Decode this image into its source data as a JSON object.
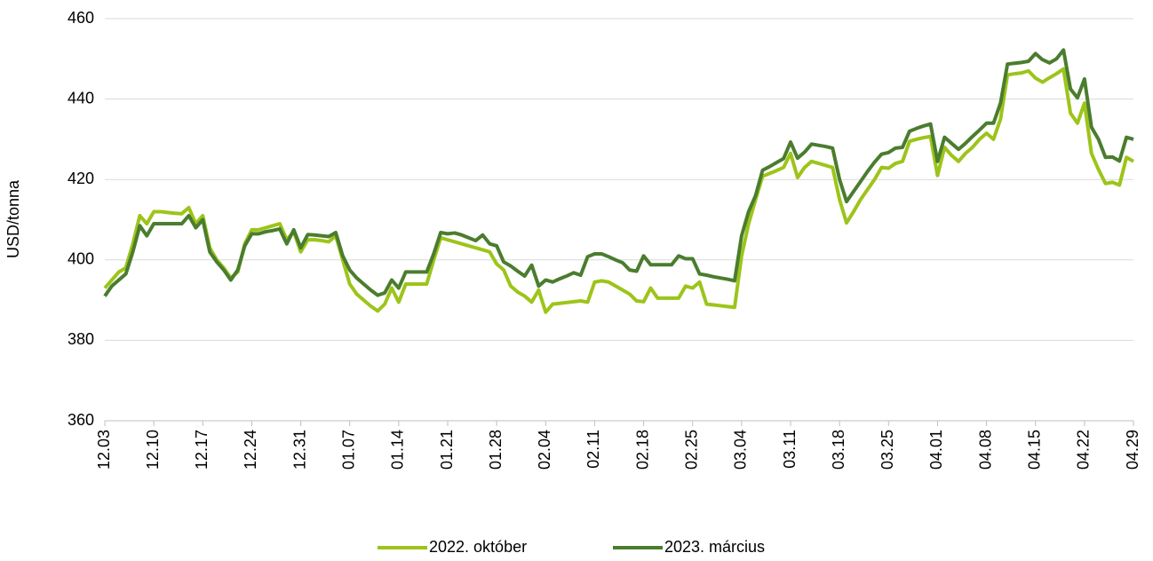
{
  "chart_data": {
    "type": "line",
    "y_label": "USD/tonna",
    "categories": [
      "12.03",
      null,
      null,
      null,
      null,
      null,
      null,
      "12.10",
      null,
      null,
      null,
      null,
      null,
      null,
      "12.17",
      null,
      null,
      null,
      null,
      null,
      null,
      "12.24",
      null,
      null,
      null,
      null,
      null,
      null,
      "12.31",
      null,
      null,
      null,
      null,
      null,
      null,
      "01.07",
      null,
      null,
      null,
      null,
      null,
      null,
      "01.14",
      null,
      null,
      null,
      null,
      null,
      null,
      "01.21",
      null,
      null,
      null,
      null,
      null,
      null,
      "01.28",
      null,
      null,
      null,
      null,
      null,
      null,
      "02.04",
      null,
      null,
      null,
      null,
      null,
      null,
      "02.11",
      null,
      null,
      null,
      null,
      null,
      null,
      "02.18",
      null,
      null,
      null,
      null,
      null,
      null,
      "02.25",
      null,
      null,
      null,
      null,
      null,
      null,
      "03.04",
      null,
      null,
      null,
      null,
      null,
      null,
      "03.11",
      null,
      null,
      null,
      null,
      null,
      null,
      "03.18",
      null,
      null,
      null,
      null,
      null,
      null,
      "03.25",
      null,
      null,
      null,
      null,
      null,
      null,
      "04.01",
      null,
      null,
      null,
      null,
      null,
      null,
      "04.08",
      null,
      null,
      null,
      null,
      null,
      null,
      "04.15",
      null,
      null,
      null,
      null,
      null,
      null,
      "04.22",
      null,
      null,
      null,
      null,
      null,
      null,
      "04.29"
    ],
    "series": [
      {
        "name": "2022. október",
        "color": "#9dc41a",
        "values": [
          393,
          395,
          397,
          398,
          404,
          411,
          409,
          412,
          412,
          411.8,
          411.6,
          411.5,
          413,
          409,
          411,
          403,
          400,
          398,
          395.5,
          397,
          404,
          407.5,
          407.5,
          408,
          408.5,
          409,
          405,
          407,
          402,
          405,
          405,
          404.8,
          404.5,
          406,
          400,
          394,
          391.5,
          390,
          388.5,
          387.3,
          389,
          393,
          389.5,
          394,
          394,
          394,
          394,
          400,
          405.5,
          405,
          404.5,
          404,
          403.5,
          403,
          402.5,
          402,
          399,
          397.5,
          393.5,
          392,
          391,
          389.5,
          392.5,
          387,
          389,
          389.2,
          389.4,
          389.6,
          389.8,
          389.5,
          394.5,
          394.8,
          394.5,
          393.5,
          392.5,
          391.5,
          389.8,
          389.6,
          393,
          390.5,
          390.5,
          390.5,
          390.5,
          393.5,
          393,
          394.5,
          389,
          388.8,
          388.6,
          388.4,
          388.2,
          401,
          409,
          415,
          420.8,
          421.5,
          422.2,
          423,
          426.5,
          420.5,
          423,
          424.5,
          424,
          423.5,
          423,
          415,
          409.2,
          412,
          415,
          417.5,
          420,
          423,
          422.8,
          424,
          424.5,
          429.5,
          430,
          430.4,
          430.7,
          421,
          428,
          426,
          424.5,
          426.5,
          428,
          430,
          431.5,
          430,
          435,
          446,
          446.3,
          446.5,
          447,
          445.2,
          444.2,
          445.3,
          446.3,
          447.5,
          436.5,
          434,
          439,
          426.5,
          422.5,
          419,
          419.3,
          418.6,
          425.5,
          424.5
        ]
      },
      {
        "name": "2023. március",
        "color": "#4a7d2e",
        "values": [
          391,
          393.5,
          395,
          396.5,
          402,
          408.5,
          406,
          409,
          409,
          409,
          409,
          409,
          411,
          408,
          410,
          402,
          399.5,
          397.5,
          395,
          397.5,
          403.5,
          406.5,
          406.5,
          407,
          407.3,
          407.7,
          404,
          407.5,
          403,
          406.3,
          406.2,
          406,
          405.8,
          406.8,
          401,
          397.5,
          395.5,
          394,
          392.5,
          391.2,
          391.8,
          395,
          393,
          397,
          397,
          397,
          397,
          401.5,
          406.8,
          406.5,
          406.7,
          406.2,
          405.5,
          404.8,
          406.2,
          404,
          403.5,
          399.5,
          398.5,
          397.2,
          396,
          398.7,
          393.5,
          395,
          394.5,
          395.3,
          396,
          396.8,
          396.2,
          400.8,
          401.5,
          401.5,
          400.8,
          400,
          399.3,
          397.5,
          397.2,
          401,
          398.8,
          398.8,
          398.8,
          398.8,
          401,
          400.3,
          400.3,
          396.5,
          396.2,
          395.8,
          395.5,
          395.2,
          394.8,
          406,
          412,
          416,
          422.3,
          423.2,
          424.2,
          425.2,
          429.3,
          425.3,
          426.8,
          428.8,
          428.5,
          428.2,
          427.8,
          420,
          414.5,
          417,
          419.5,
          422,
          424.3,
          426.3,
          426.7,
          427.8,
          428,
          432,
          432.7,
          433.3,
          433.8,
          424.5,
          430.5,
          429,
          427.5,
          429,
          430.7,
          432.3,
          434,
          434,
          439,
          448.7,
          448.9,
          449.1,
          449.4,
          451.3,
          449.8,
          449,
          450,
          452.2,
          442.5,
          440.3,
          445,
          433,
          430,
          425.5,
          425.6,
          424.6,
          430.5,
          430
        ]
      }
    ],
    "ylim": [
      360,
      460
    ],
    "yticks": [
      360,
      380,
      400,
      420,
      440,
      460
    ],
    "grid": true,
    "legend": "bottom"
  }
}
